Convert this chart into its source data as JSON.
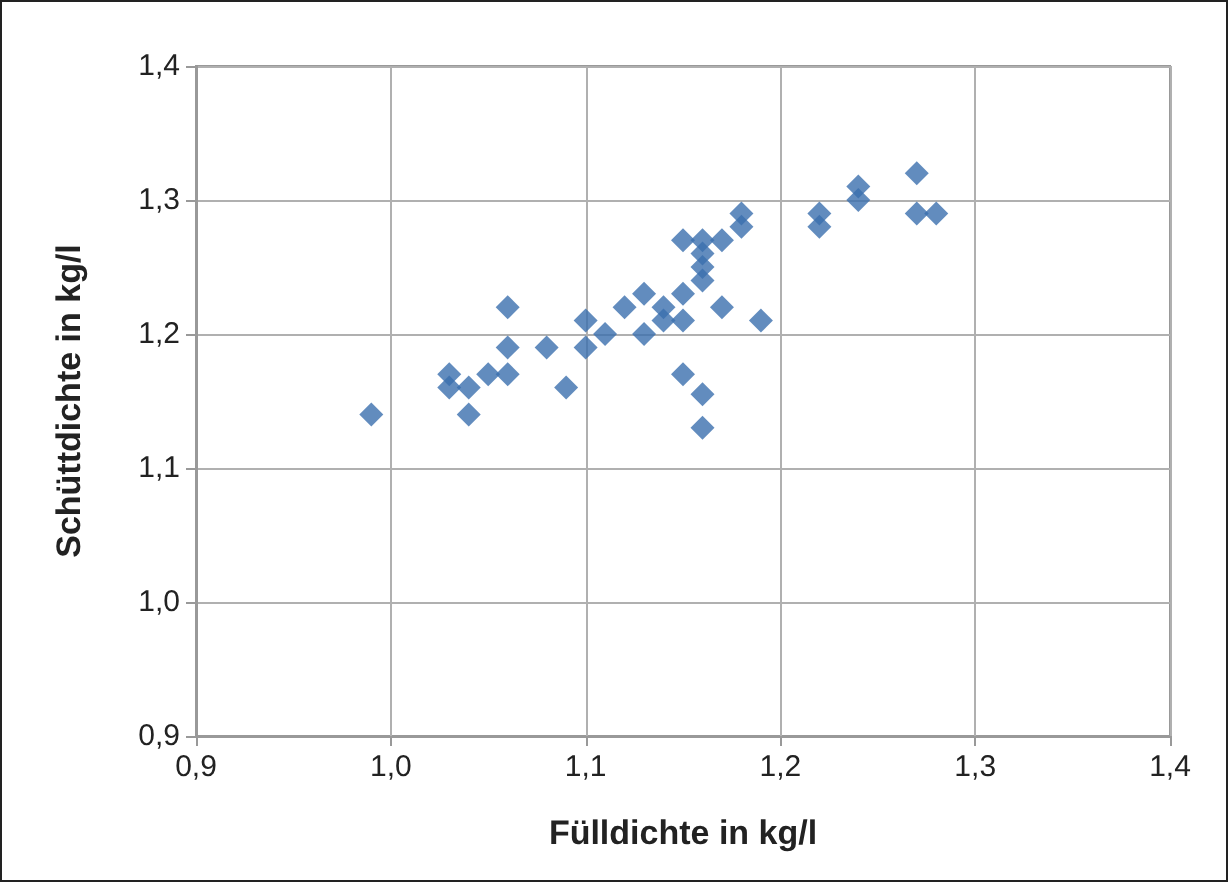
{
  "chart_data": {
    "type": "scatter",
    "xlabel": "Fülldichte in kg/l",
    "ylabel": "Schüttdichte in kg/l",
    "x": [
      0.99,
      1.03,
      1.03,
      1.04,
      1.04,
      1.05,
      1.06,
      1.06,
      1.06,
      1.08,
      1.09,
      1.1,
      1.1,
      1.11,
      1.12,
      1.13,
      1.13,
      1.14,
      1.14,
      1.15,
      1.15,
      1.15,
      1.15,
      1.16,
      1.16,
      1.16,
      1.16,
      1.16,
      1.16,
      1.17,
      1.17,
      1.18,
      1.18,
      1.19,
      1.22,
      1.22,
      1.24,
      1.24,
      1.27,
      1.27,
      1.28
    ],
    "series": [
      {
        "color": "#3b6fae",
        "values": [
          1.14,
          1.17,
          1.16,
          1.16,
          1.14,
          1.17,
          1.22,
          1.19,
          1.17,
          1.19,
          1.16,
          1.21,
          1.19,
          1.2,
          1.22,
          1.23,
          1.2,
          1.22,
          1.21,
          1.27,
          1.23,
          1.21,
          1.17,
          1.27,
          1.26,
          1.25,
          1.24,
          1.155,
          1.13,
          1.27,
          1.22,
          1.29,
          1.28,
          1.21,
          1.29,
          1.28,
          1.31,
          1.3,
          1.32,
          1.29,
          1.29
        ]
      }
    ],
    "xlim": [
      0.9,
      1.4
    ],
    "xticks": [
      {
        "value": 0.9,
        "label": "0,9"
      },
      {
        "value": 1.0,
        "label": "1,0"
      },
      {
        "value": 1.1,
        "label": "1,1"
      },
      {
        "value": 1.2,
        "label": "1,2"
      },
      {
        "value": 1.3,
        "label": "1,3"
      },
      {
        "value": 1.4,
        "label": "1,4"
      }
    ],
    "ylim": [
      0.9,
      1.4
    ],
    "yticks": [
      {
        "value": 0.9,
        "label": "0,9"
      },
      {
        "value": 1.0,
        "label": "1,0"
      },
      {
        "value": 1.1,
        "label": "1,1"
      },
      {
        "value": 1.2,
        "label": "1,2"
      },
      {
        "value": 1.3,
        "label": "1,3"
      },
      {
        "value": 1.4,
        "label": "1,4"
      }
    ],
    "grid": true,
    "marker": "diamond"
  }
}
